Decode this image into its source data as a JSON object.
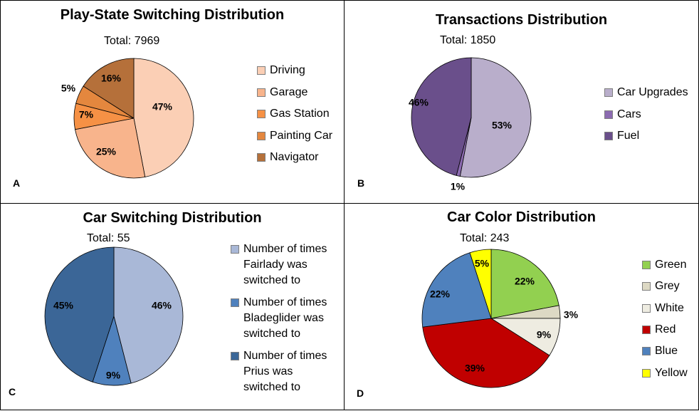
{
  "chart_data": [
    {
      "type": "pie",
      "panel_label": "A",
      "title": "Play-State Switching Distribution",
      "total_label": "Total: 7969",
      "categories": [
        "Driving",
        "Garage",
        "Gas Station",
        "Painting Car",
        "Navigator"
      ],
      "values": [
        47,
        25,
        7,
        5,
        16
      ],
      "value_labels": [
        "47%",
        "25%",
        "7%",
        "5%",
        "16%"
      ],
      "colors": [
        "#fbcfb5",
        "#f8b48c",
        "#f69145",
        "#e4873e",
        "#b5703a"
      ],
      "legend_position": "right"
    },
    {
      "type": "pie",
      "panel_label": "B",
      "title": "Transactions Distribution",
      "total_label": "Total: 1850",
      "categories": [
        "Car Upgrades",
        "Cars",
        "Fuel"
      ],
      "values": [
        53,
        1,
        46
      ],
      "value_labels": [
        "53%",
        "1%",
        "46%"
      ],
      "colors": [
        "#b9aecb",
        "#8c6bb1",
        "#6a4f8b"
      ],
      "legend_position": "right"
    },
    {
      "type": "pie",
      "panel_label": "C",
      "title": "Car Switching Distribution",
      "total_label": "Total: 55",
      "categories": [
        "Number of times Fairlady was switched to",
        "Number of times Bladeglider was switched to",
        "Number of times Prius was switched to"
      ],
      "legend_lines": [
        [
          "Number of times",
          "Fairlady was",
          "switched to"
        ],
        [
          "Number of times",
          "Bladeglider was",
          "switched to"
        ],
        [
          "Number of times",
          "Prius was",
          "switched to"
        ]
      ],
      "values": [
        46,
        9,
        45
      ],
      "value_labels": [
        "46%",
        "9%",
        "45%"
      ],
      "colors": [
        "#a9b8d7",
        "#4f81bd",
        "#3b6697"
      ],
      "legend_position": "right"
    },
    {
      "type": "pie",
      "panel_label": "D",
      "title": "Car Color Distribution",
      "total_label": "Total: 243",
      "categories": [
        "Green",
        "Grey",
        "White",
        "Red",
        "Blue",
        "Yellow"
      ],
      "values": [
        22,
        3,
        9,
        39,
        22,
        5
      ],
      "value_labels": [
        "22%",
        "3%",
        "9%",
        "39%",
        "22%",
        "5%"
      ],
      "colors": [
        "#92d050",
        "#ddd9c4",
        "#eeece1",
        "#c00000",
        "#4f81bd",
        "#ffff00"
      ],
      "legend_position": "right"
    }
  ]
}
